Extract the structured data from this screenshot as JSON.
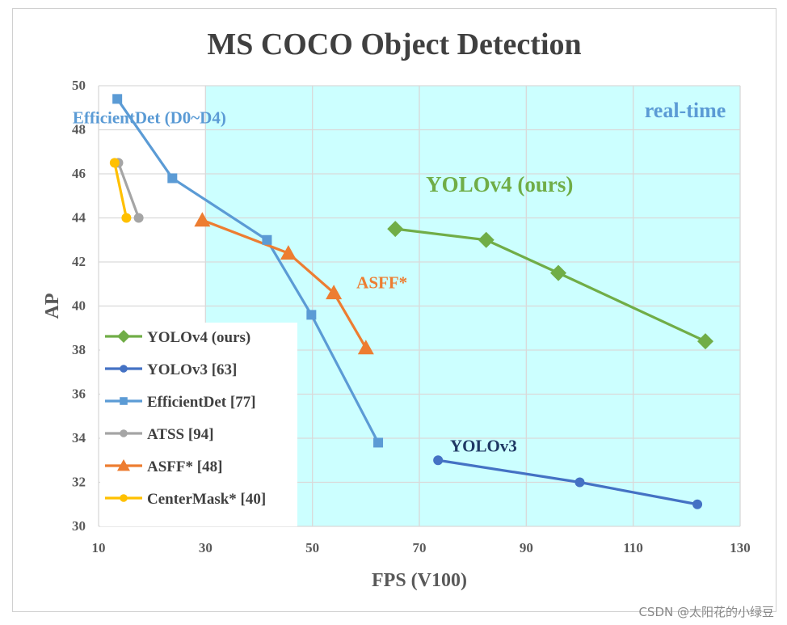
{
  "chart_data": {
    "type": "line",
    "title": "MS COCO Object Detection",
    "xlabel": "FPS (V100)",
    "ylabel": "AP",
    "xlim": [
      10,
      130
    ],
    "ylim": [
      30,
      50
    ],
    "x_ticks": [
      "10",
      "30",
      "50",
      "70",
      "90",
      "110",
      "130"
    ],
    "y_ticks": [
      "30",
      "32",
      "34",
      "36",
      "38",
      "40",
      "42",
      "44",
      "46",
      "48",
      "50"
    ],
    "grid": true,
    "real_time_region": {
      "x_start": 30,
      "label": "real-time"
    },
    "legend_position": "bottom-left",
    "series": [
      {
        "name": "YOLOv4 (ours)",
        "color": "#70ad47",
        "marker": "diamond",
        "x": [
          65.5,
          82.5,
          96,
          123.5
        ],
        "y": [
          43.5,
          43.0,
          41.5,
          38.4
        ]
      },
      {
        "name": "YOLOv3 [63]",
        "color": "#4472c4",
        "marker": "circle",
        "x": [
          73.5,
          100,
          122
        ],
        "y": [
          33.0,
          32.0,
          31.0
        ]
      },
      {
        "name": "EfficientDet [77]",
        "color": "#5b9bd5",
        "marker": "square",
        "x": [
          13.5,
          23.8,
          41.5,
          49.8,
          62.3
        ],
        "y": [
          49.4,
          45.8,
          43.0,
          39.6,
          33.8
        ]
      },
      {
        "name": "ATSS [94]",
        "color": "#a5a5a5",
        "marker": "circle",
        "x": [
          13.7,
          17.5
        ],
        "y": [
          46.5,
          44.0
        ]
      },
      {
        "name": "ASFF* [48]",
        "color": "#ed7d31",
        "marker": "triangle",
        "x": [
          29.4,
          45.5,
          54,
          60
        ],
        "y": [
          43.9,
          42.4,
          40.6,
          38.1
        ]
      },
      {
        "name": "CenterMask* [40]",
        "color": "#ffc000",
        "marker": "circle",
        "x": [
          13,
          15.2
        ],
        "y": [
          46.5,
          44.0
        ]
      }
    ],
    "annotations": [
      {
        "text": "EfficientDet (D0~D4)",
        "color": "#5b9bd5",
        "x": 19.5,
        "y": 48.3
      },
      {
        "text": "YOLOv4 (ours)",
        "color": "#70ad47",
        "x": 85,
        "y": 45.2
      },
      {
        "text": "ASFF*",
        "color": "#ed7d31",
        "x": 63,
        "y": 40.8
      },
      {
        "text": "YOLOv3",
        "color": "#1f3864",
        "x": 82,
        "y": 33.4
      }
    ]
  },
  "watermark": "CSDN @太阳花的小绿豆"
}
